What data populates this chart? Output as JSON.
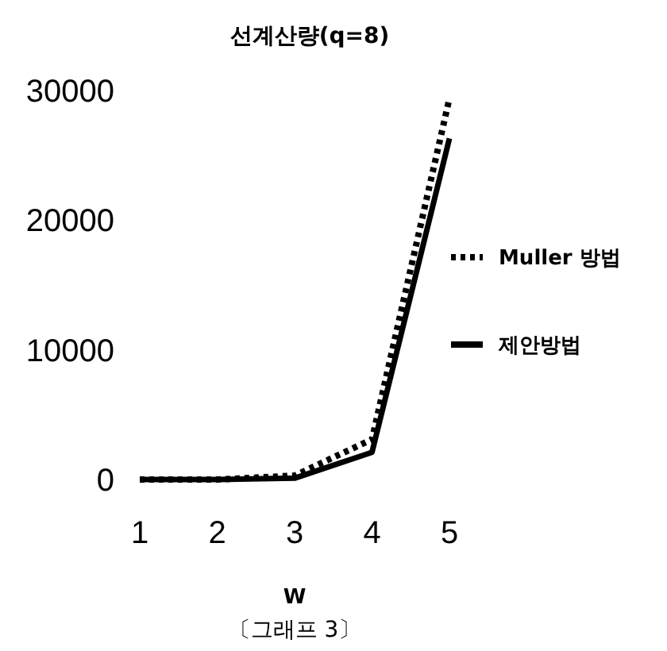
{
  "chart_data": {
    "type": "line",
    "title": "선계산량(q=8)",
    "xlabel": "W",
    "annotations": [
      "〔그래프 3〕"
    ],
    "categories": [
      "1",
      "2",
      "3",
      "4",
      "5"
    ],
    "series": [
      {
        "name": "Muller 방법",
        "color": "#000000",
        "line_style": "dotted",
        "values": [
          0,
          0,
          300,
          3100,
          29400
        ]
      },
      {
        "name": "제안방법",
        "color": "#000000",
        "line_style": "solid",
        "values": [
          0,
          0,
          100,
          2100,
          26300
        ]
      }
    ],
    "ylim": [
      0,
      30000
    ],
    "yticks": [
      0,
      10000,
      20000,
      30000
    ],
    "grid": false,
    "legend": "right",
    "marker": "none"
  }
}
